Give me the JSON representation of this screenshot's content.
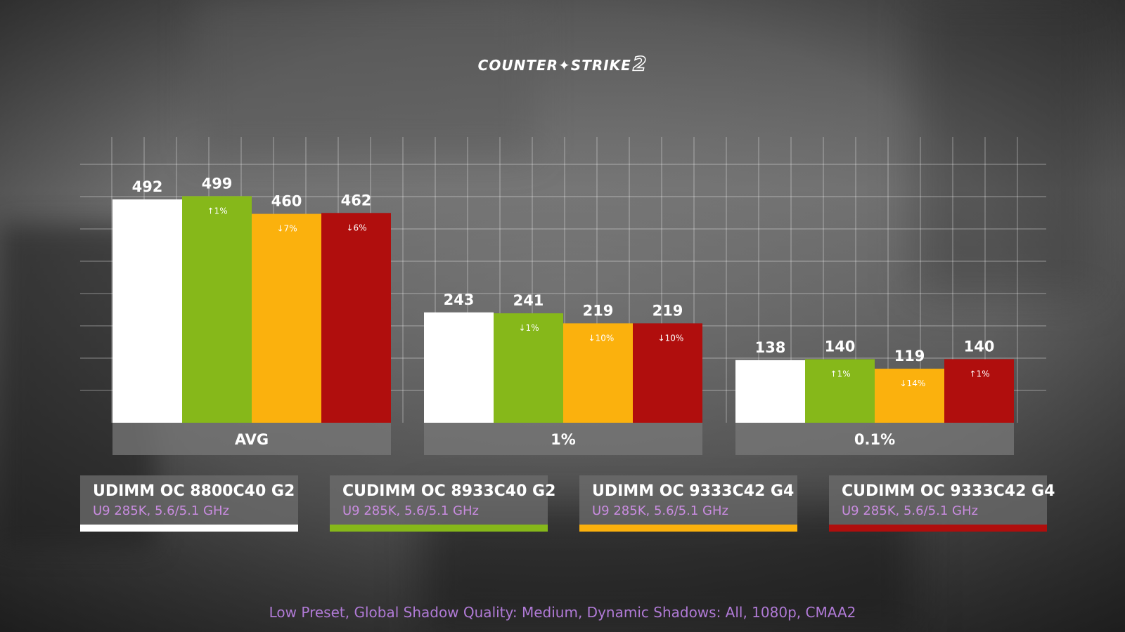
{
  "header": {
    "logo_text": "COUNTER",
    "logo_text2": "STRIKE",
    "logo_num": "2"
  },
  "chart_data": {
    "type": "bar",
    "categories": [
      "AVG",
      "1%",
      "0.1%"
    ],
    "series": [
      {
        "name": "UDIMM OC 8800C40 G2",
        "color": "#ffffff",
        "values": [
          492,
          243,
          138
        ],
        "changes": [
          "",
          "",
          ""
        ]
      },
      {
        "name": "CUDIMM OC 8933C40 G2",
        "color": "#86b81a",
        "values": [
          499,
          241,
          140
        ],
        "changes": [
          "up:1%",
          "down:1%",
          "up:1%"
        ]
      },
      {
        "name": "UDIMM OC 9333C42 G4",
        "color": "#fbb10d",
        "values": [
          460,
          219,
          119
        ],
        "changes": [
          "down:7%",
          "down:10%",
          "down:14%"
        ]
      },
      {
        "name": "CUDIMM OC 9333C42 G4",
        "color": "#b00e0d",
        "values": [
          462,
          219,
          140
        ],
        "changes": [
          "down:6%",
          "down:10%",
          "up:1%"
        ]
      }
    ],
    "ylim": [
      0,
      580
    ],
    "grid": true,
    "legend": "bottom"
  },
  "legend": [
    {
      "name": "UDIMM OC 8800C40 G2",
      "sub": "U9 285K, 5.6/5.1 GHz",
      "color": "#ffffff"
    },
    {
      "name": "CUDIMM OC 8933C40 G2",
      "sub": "U9 285K, 5.6/5.1 GHz",
      "color": "#86b81a"
    },
    {
      "name": "UDIMM OC 9333C42 G4",
      "sub": "U9 285K, 5.6/5.1 GHz",
      "color": "#fbb10d"
    },
    {
      "name": "CUDIMM OC 9333C42 G4",
      "sub": "U9 285K, 5.6/5.1 GHz",
      "color": "#b00e0d"
    }
  ],
  "footnote": "Low Preset, Global Shadow Quality: Medium, Dynamic Shadows: All, 1080p, CMAA2"
}
